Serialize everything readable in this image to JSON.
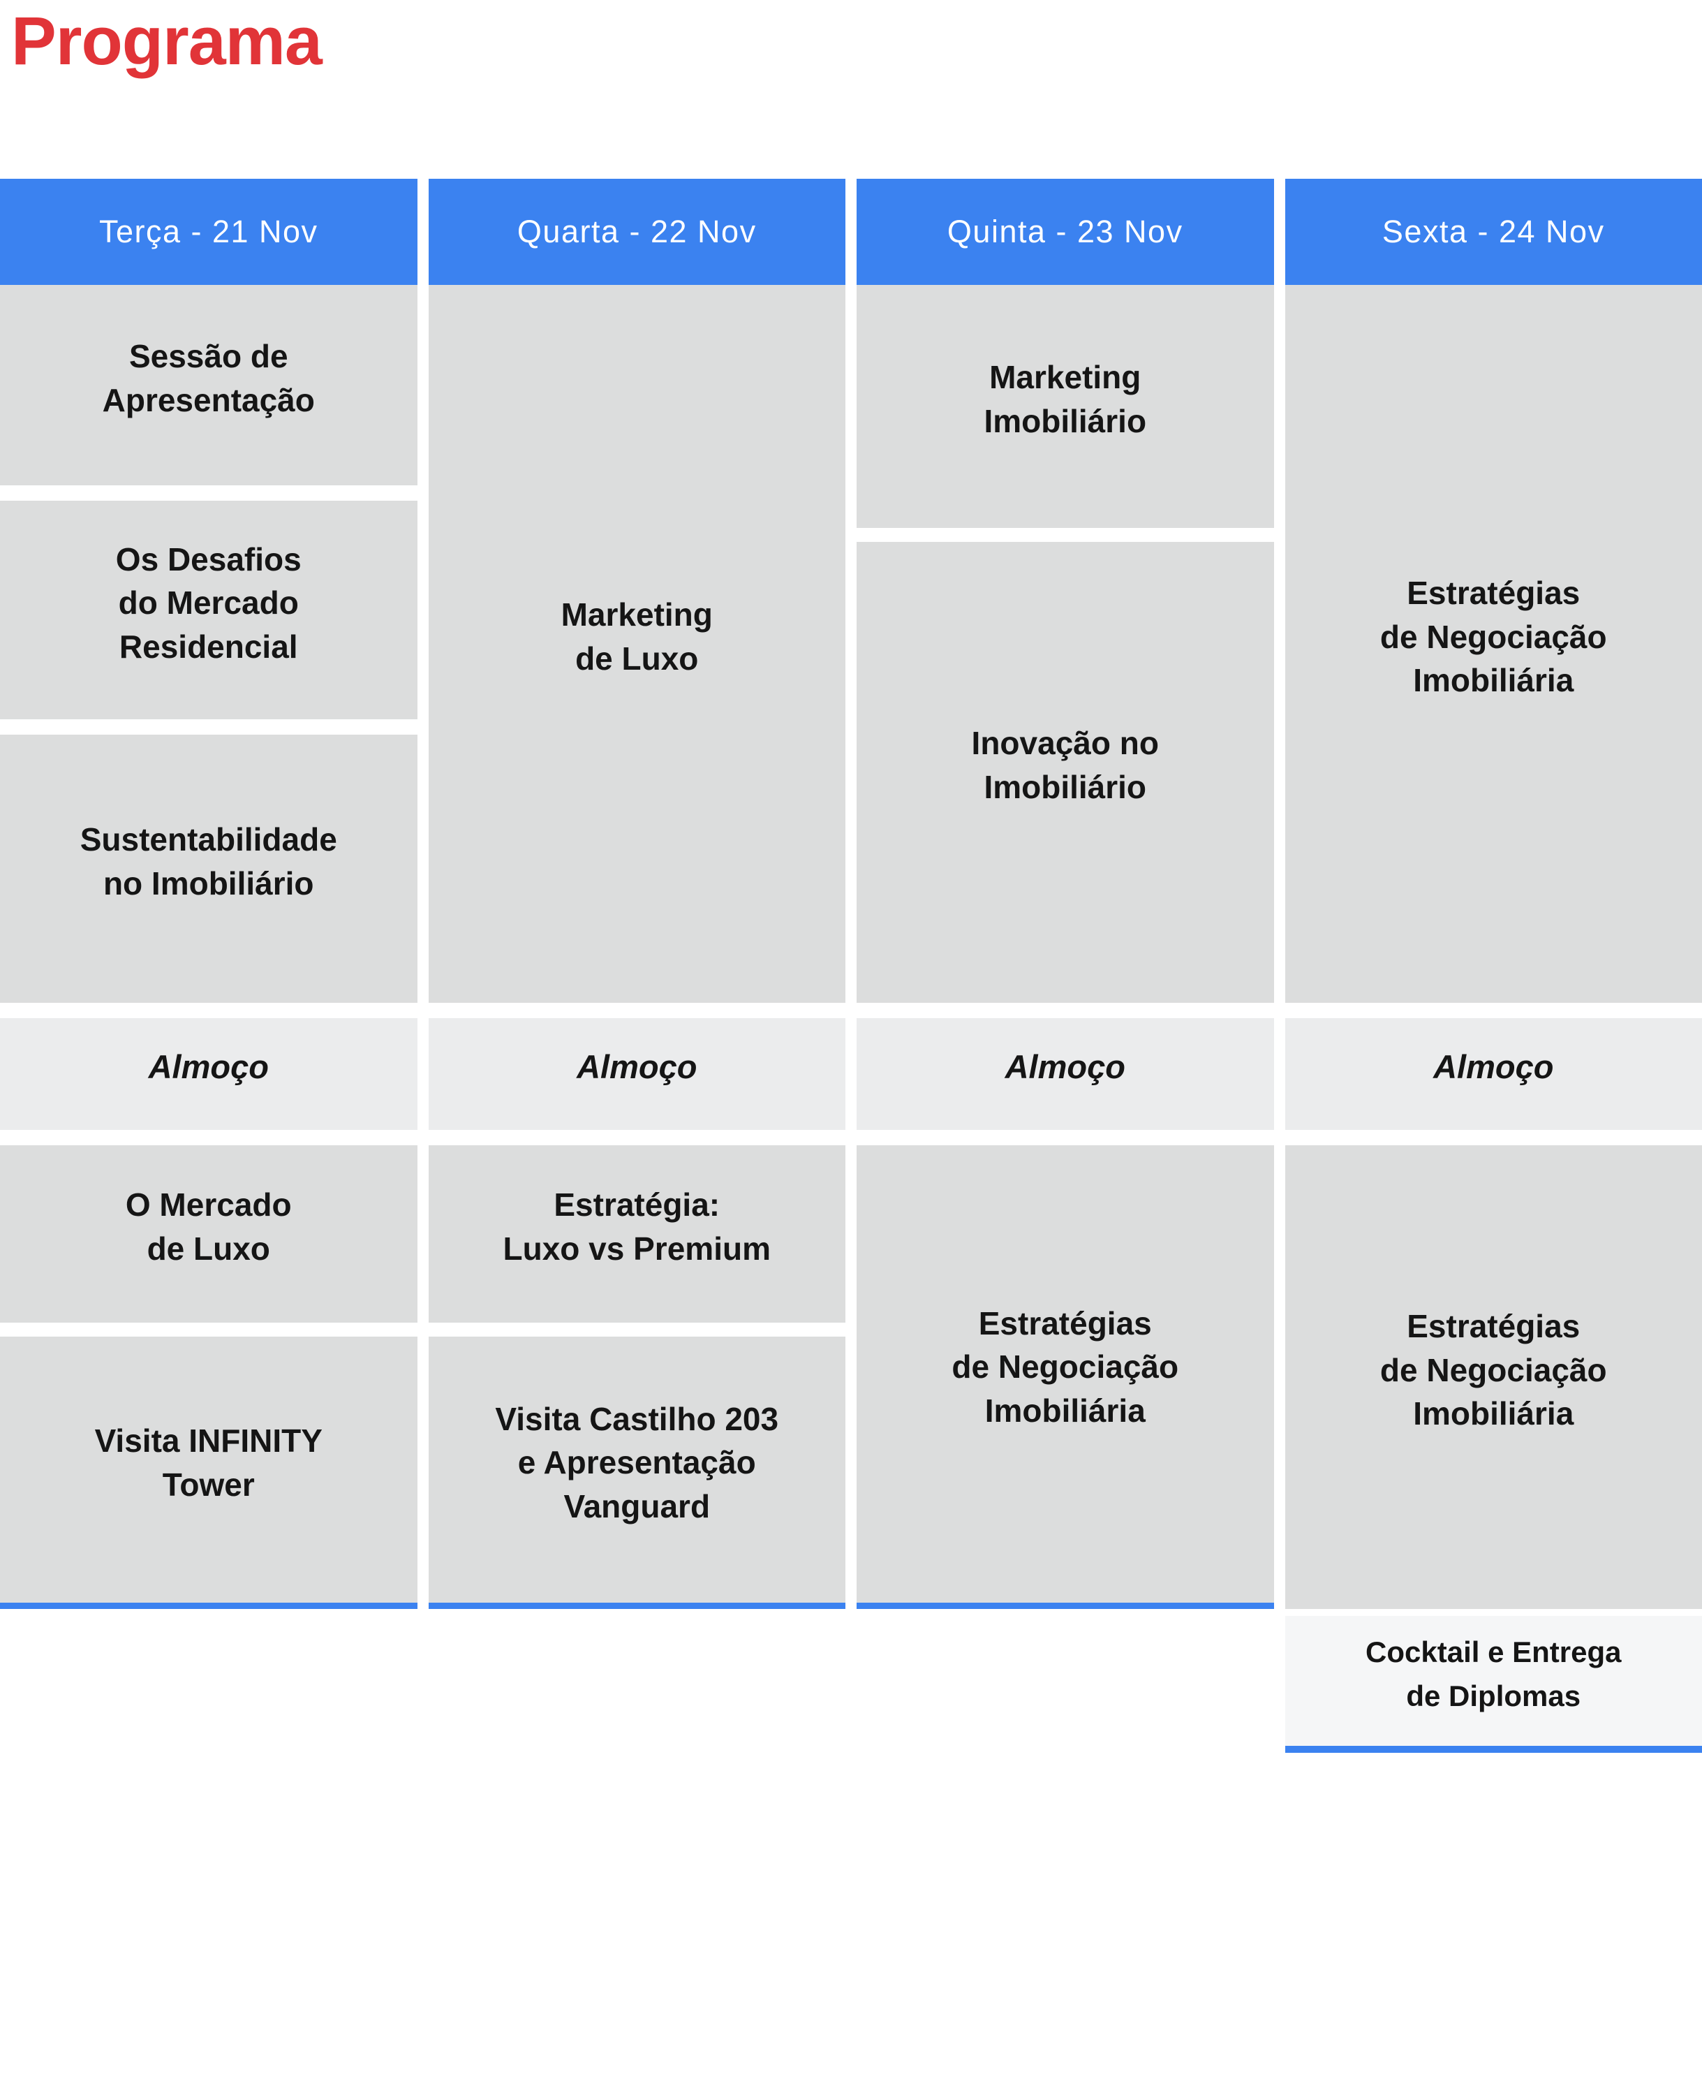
{
  "page": {
    "title": "Programa"
  },
  "colors": {
    "title_red": "#e13438",
    "header_blue": "#3b82f0",
    "underline_blue": "#3b82f0",
    "event_cell_gray": "#dcdddd",
    "lunch_cell_gray": "#ebeced",
    "cocktail_cell_bg": "#f5f6f7",
    "event_text": "#151515",
    "header_text": "#ffffff"
  },
  "schedule": {
    "days": [
      {
        "header": "Terça - 21 Nov",
        "cells": {
          "morning1": "Sessão de\nApresentação",
          "morning2": "Os Desafios\ndo Mercado\nResidencial",
          "morning3": "Sustentabilidade\nno Imobiliário",
          "lunch": "Almoço",
          "afternoon1": "O Mercado\nde Luxo",
          "afternoon2": "Visita INFINITY\nTower"
        }
      },
      {
        "header": "Quarta - 22 Nov",
        "cells": {
          "morning": "Marketing\nde Luxo",
          "lunch": "Almoço",
          "afternoon1": "Estratégia:\nLuxo vs Premium",
          "afternoon2": "Visita Castilho 203\ne Apresentação\nVanguard"
        }
      },
      {
        "header": "Quinta - 23 Nov",
        "cells": {
          "morning1": "Marketing\nImobiliário",
          "morning2": "Inovação no\nImobiliário",
          "lunch": "Almoço",
          "afternoon": "Estratégias\nde Negociação\nImobiliária"
        }
      },
      {
        "header": "Sexta - 24 Nov",
        "cells": {
          "morning": "Estratégias\nde Negociação\nImobiliária",
          "lunch": "Almoço",
          "afternoon": "Estratégias\nde Negociação\nImobiliária",
          "evening": "Cocktail e Entrega\nde Diplomas"
        }
      }
    ]
  }
}
